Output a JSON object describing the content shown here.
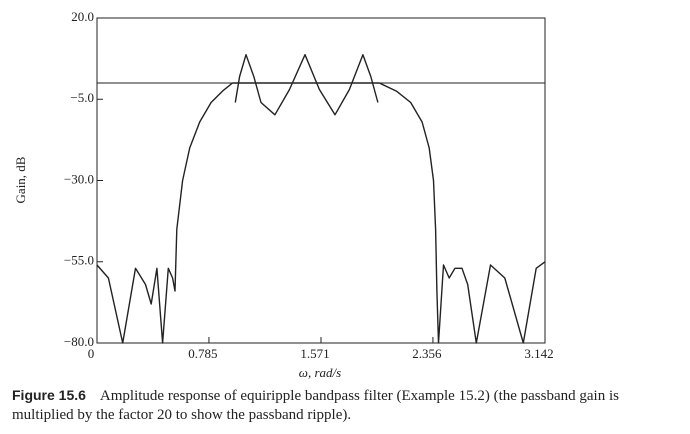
{
  "chart_data": {
    "type": "line",
    "ylabel": "Gain, dB",
    "xlabel": "ω, rad/s",
    "xlim": [
      0,
      3.142
    ],
    "ylim": [
      -80,
      20
    ],
    "xticks": [
      0,
      0.785,
      1.571,
      2.356,
      3.142
    ],
    "yticks": [
      {
        "value": 20,
        "label": "20.0"
      },
      {
        "value": -5,
        "label": "−5.0"
      },
      {
        "value": -30,
        "label": "−30.0"
      },
      {
        "value": -55,
        "label": "−55.0"
      },
      {
        "value": -80,
        "label": "−80.0"
      }
    ],
    "reference_line": 0,
    "series": [
      {
        "color": "#222222",
        "x": [
          0,
          0.08,
          0.18,
          0.27,
          0.34,
          0.38,
          0.42,
          0.46,
          0.5,
          0.53,
          0.547,
          0.56,
          0.6,
          0.65,
          0.72,
          0.8,
          0.88,
          0.95,
          1.98,
          2.1,
          2.2,
          2.28,
          2.33,
          2.36,
          2.375,
          2.384,
          2.395,
          2.43,
          2.47,
          2.51,
          2.56,
          2.6,
          2.66,
          2.76,
          2.86,
          2.99,
          3.08,
          3.142
        ],
        "values": [
          -56,
          -60,
          -80,
          -57,
          -62,
          -68,
          -57,
          -80,
          -57,
          -60,
          -64,
          -45,
          -30,
          -20,
          -12,
          -6,
          -2.5,
          0,
          0,
          -2.5,
          -6,
          -12,
          -20,
          -30,
          -45,
          -64,
          -80,
          -56,
          -60,
          -57,
          -57,
          -62,
          -80,
          -56,
          -60,
          -80,
          -57,
          -55
        ]
      },
      {
        "color": "#222222",
        "x": [
          0.97,
          1.0,
          1.045,
          1.1,
          1.15,
          1.248,
          1.35,
          1.459,
          1.56,
          1.669,
          1.77,
          1.865,
          1.92,
          1.97
        ],
        "values": [
          -6,
          2,
          8.7,
          2,
          -6,
          -9.8,
          -2,
          8.7,
          -2,
          -9.8,
          -2,
          8.7,
          2,
          -6
        ]
      }
    ],
    "caption_label": "Figure 15.6",
    "caption": "Amplitude response of equiripple bandpass filter (Example 15.2) (the passband gain is multiplied by the factor 20 to show the passband ripple)."
  }
}
